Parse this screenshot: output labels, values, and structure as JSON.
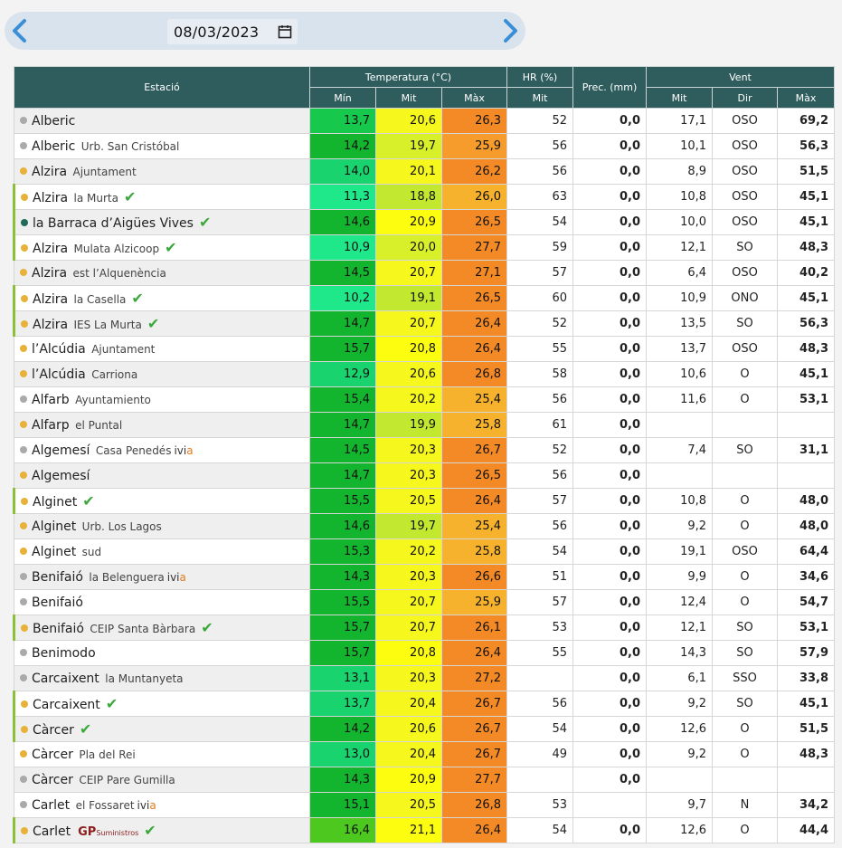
{
  "date": {
    "value": "08/03/2023"
  },
  "icons": {
    "prev": "chevron-left-icon",
    "next": "chevron-right-icon",
    "calendar": "calendar-icon",
    "verified": "check-icon"
  },
  "colors": {
    "header": "#2f5d5d",
    "min_palette": [
      "#1ee88a",
      "#19d46e",
      "#16c94c",
      "#14b52e",
      "#4dc81f"
    ],
    "mit_palette": [
      "#a8e23b",
      "#d8f02a",
      "#f6f71c",
      "#fdfd10"
    ],
    "max_palette": [
      "#f6b22c",
      "#f59c2c",
      "#f48a26"
    ]
  },
  "header": {
    "estacio": "Estació",
    "temperatura": "Temperatura (°C)",
    "hr": "HR (%)",
    "prec": "Prec. (mm)",
    "vent": "Vent",
    "min": "Mín",
    "mit": "Mit",
    "max": "Màx",
    "hr_mit": "Mit",
    "v_mit": "Mit",
    "v_dir": "Dir",
    "v_max": "Màx"
  },
  "rows": [
    {
      "name": "Alberic",
      "sub": "",
      "dot": "#aaaaaa",
      "bar": false,
      "check": false,
      "ivia": false,
      "gp": false,
      "min": "13,7",
      "mit": "20,6",
      "max": "26,3",
      "hr": "52",
      "prec": "0,0",
      "vmit": "17,1",
      "dir": "OSO",
      "vmax": "69,2",
      "cmin": "#16c94c",
      "cmit": "#f6f71c",
      "cmax": "#f48a26"
    },
    {
      "name": "Alberic",
      "sub": "Urb. San Cristóbal",
      "dot": "#aaaaaa",
      "bar": false,
      "check": false,
      "ivia": false,
      "gp": false,
      "min": "14,2",
      "mit": "19,7",
      "max": "25,9",
      "hr": "56",
      "prec": "0,0",
      "vmit": "10,1",
      "dir": "OSO",
      "vmax": "56,3",
      "cmin": "#14b52e",
      "cmit": "#d8f02a",
      "cmax": "#f59c2c"
    },
    {
      "name": "Alzira",
      "sub": "Ajuntament",
      "dot": "#e8b23a",
      "bar": false,
      "check": false,
      "ivia": false,
      "gp": false,
      "min": "14,0",
      "mit": "20,1",
      "max": "26,2",
      "hr": "56",
      "prec": "0,0",
      "vmit": "8,9",
      "dir": "OSO",
      "vmax": "51,5",
      "cmin": "#19d46e",
      "cmit": "#f6f71c",
      "cmax": "#f48a26"
    },
    {
      "name": "Alzira",
      "sub": "la Murta",
      "dot": "#e8b23a",
      "bar": true,
      "check": true,
      "ivia": false,
      "gp": false,
      "min": "11,3",
      "mit": "18,8",
      "max": "26,0",
      "hr": "63",
      "prec": "0,0",
      "vmit": "10,8",
      "dir": "OSO",
      "vmax": "45,1",
      "cmin": "#1ee88a",
      "cmit": "#c2e92f",
      "cmax": "#f6b22c"
    },
    {
      "name": "la Barraca d’Aigües Vives",
      "sub": "",
      "dot": "#1f6a5a",
      "bar": true,
      "check": true,
      "ivia": false,
      "gp": false,
      "min": "14,6",
      "mit": "20,9",
      "max": "26,5",
      "hr": "54",
      "prec": "0,0",
      "vmit": "10,0",
      "dir": "OSO",
      "vmax": "45,1",
      "cmin": "#14b52e",
      "cmit": "#fdfd10",
      "cmax": "#f48a26"
    },
    {
      "name": "Alzira",
      "sub": "Mulata Alzicoop",
      "dot": "#e8b23a",
      "bar": true,
      "check": true,
      "ivia": false,
      "gp": false,
      "min": "10,9",
      "mit": "20,0",
      "max": "27,7",
      "hr": "59",
      "prec": "0,0",
      "vmit": "12,1",
      "dir": "SO",
      "vmax": "48,3",
      "cmin": "#1ee88a",
      "cmit": "#d8f02a",
      "cmax": "#f48a26"
    },
    {
      "name": "Alzira",
      "sub": "est l’Alquenència",
      "dot": "#e8b23a",
      "bar": false,
      "check": false,
      "ivia": false,
      "gp": false,
      "min": "14,5",
      "mit": "20,7",
      "max": "27,1",
      "hr": "57",
      "prec": "0,0",
      "vmit": "6,4",
      "dir": "OSO",
      "vmax": "40,2",
      "cmin": "#14b52e",
      "cmit": "#f6f71c",
      "cmax": "#f48a26"
    },
    {
      "name": "Alzira",
      "sub": "la Casella",
      "dot": "#e8b23a",
      "bar": true,
      "check": true,
      "ivia": false,
      "gp": false,
      "min": "10,2",
      "mit": "19,1",
      "max": "26,5",
      "hr": "60",
      "prec": "0,0",
      "vmit": "10,9",
      "dir": "ONO",
      "vmax": "45,1",
      "cmin": "#1ee88a",
      "cmit": "#c2e92f",
      "cmax": "#f48a26"
    },
    {
      "name": "Alzira",
      "sub": "IES La Murta",
      "dot": "#e8b23a",
      "bar": true,
      "check": true,
      "ivia": false,
      "gp": false,
      "min": "14,7",
      "mit": "20,7",
      "max": "26,4",
      "hr": "52",
      "prec": "0,0",
      "vmit": "13,5",
      "dir": "SO",
      "vmax": "56,3",
      "cmin": "#14b52e",
      "cmit": "#f6f71c",
      "cmax": "#f48a26"
    },
    {
      "name": "l’Alcúdia",
      "sub": "Ajuntament",
      "dot": "#e8b23a",
      "bar": false,
      "check": false,
      "ivia": false,
      "gp": false,
      "min": "15,7",
      "mit": "20,8",
      "max": "26,4",
      "hr": "55",
      "prec": "0,0",
      "vmit": "13,7",
      "dir": "OSO",
      "vmax": "48,3",
      "cmin": "#14b52e",
      "cmit": "#fdfd10",
      "cmax": "#f48a26"
    },
    {
      "name": "l’Alcúdia",
      "sub": "Carriona",
      "dot": "#e8b23a",
      "bar": false,
      "check": false,
      "ivia": false,
      "gp": false,
      "min": "12,9",
      "mit": "20,6",
      "max": "26,8",
      "hr": "58",
      "prec": "0,0",
      "vmit": "10,6",
      "dir": "O",
      "vmax": "45,1",
      "cmin": "#19d46e",
      "cmit": "#f6f71c",
      "cmax": "#f48a26"
    },
    {
      "name": "Alfarb",
      "sub": "Ayuntamiento",
      "dot": "#aaaaaa",
      "bar": false,
      "check": false,
      "ivia": false,
      "gp": false,
      "min": "15,4",
      "mit": "20,2",
      "max": "25,4",
      "hr": "56",
      "prec": "0,0",
      "vmit": "11,6",
      "dir": "O",
      "vmax": "53,1",
      "cmin": "#14b52e",
      "cmit": "#f6f71c",
      "cmax": "#f6b22c"
    },
    {
      "name": "Alfarp",
      "sub": "el Puntal",
      "dot": "#e8b23a",
      "bar": false,
      "check": false,
      "ivia": false,
      "gp": false,
      "min": "14,7",
      "mit": "19,9",
      "max": "25,8",
      "hr": "61",
      "prec": "0,0",
      "vmit": "",
      "dir": "",
      "vmax": "",
      "cmin": "#14b52e",
      "cmit": "#c2e92f",
      "cmax": "#f6b22c"
    },
    {
      "name": "Algemesí",
      "sub": "Casa Penedés",
      "dot": "#aaaaaa",
      "bar": false,
      "check": false,
      "ivia": true,
      "gp": false,
      "min": "14,5",
      "mit": "20,3",
      "max": "26,7",
      "hr": "52",
      "prec": "0,0",
      "vmit": "7,4",
      "dir": "SO",
      "vmax": "31,1",
      "cmin": "#14b52e",
      "cmit": "#f6f71c",
      "cmax": "#f48a26"
    },
    {
      "name": "Algemesí",
      "sub": "",
      "dot": "#e8b23a",
      "bar": false,
      "check": false,
      "ivia": false,
      "gp": false,
      "min": "14,7",
      "mit": "20,3",
      "max": "26,5",
      "hr": "56",
      "prec": "0,0",
      "vmit": "",
      "dir": "",
      "vmax": "",
      "cmin": "#14b52e",
      "cmit": "#f6f71c",
      "cmax": "#f48a26"
    },
    {
      "name": "Alginet",
      "sub": "",
      "dot": "#e8b23a",
      "bar": true,
      "check": true,
      "ivia": false,
      "gp": false,
      "min": "15,5",
      "mit": "20,5",
      "max": "26,4",
      "hr": "57",
      "prec": "0,0",
      "vmit": "10,8",
      "dir": "O",
      "vmax": "48,0",
      "cmin": "#14b52e",
      "cmit": "#f6f71c",
      "cmax": "#f48a26"
    },
    {
      "name": "Alginet",
      "sub": "Urb. Los Lagos",
      "dot": "#e8b23a",
      "bar": false,
      "check": false,
      "ivia": false,
      "gp": false,
      "min": "14,6",
      "mit": "19,7",
      "max": "25,4",
      "hr": "56",
      "prec": "0,0",
      "vmit": "9,2",
      "dir": "O",
      "vmax": "48,0",
      "cmin": "#14b52e",
      "cmit": "#c2e92f",
      "cmax": "#f6b22c"
    },
    {
      "name": "Alginet",
      "sub": "sud",
      "dot": "#e8b23a",
      "bar": false,
      "check": false,
      "ivia": false,
      "gp": false,
      "min": "15,3",
      "mit": "20,2",
      "max": "25,8",
      "hr": "54",
      "prec": "0,0",
      "vmit": "19,1",
      "dir": "OSO",
      "vmax": "64,4",
      "cmin": "#14b52e",
      "cmit": "#f6f71c",
      "cmax": "#f6b22c"
    },
    {
      "name": "Benifaió",
      "sub": "la Belenguera",
      "dot": "#aaaaaa",
      "bar": false,
      "check": false,
      "ivia": true,
      "gp": false,
      "min": "14,3",
      "mit": "20,3",
      "max": "26,6",
      "hr": "51",
      "prec": "0,0",
      "vmit": "9,9",
      "dir": "O",
      "vmax": "34,6",
      "cmin": "#14b52e",
      "cmit": "#f6f71c",
      "cmax": "#f48a26"
    },
    {
      "name": "Benifaió",
      "sub": "",
      "dot": "#aaaaaa",
      "bar": false,
      "check": false,
      "ivia": false,
      "gp": false,
      "min": "15,5",
      "mit": "20,7",
      "max": "25,9",
      "hr": "57",
      "prec": "0,0",
      "vmit": "12,4",
      "dir": "O",
      "vmax": "54,7",
      "cmin": "#14b52e",
      "cmit": "#f6f71c",
      "cmax": "#f6b22c"
    },
    {
      "name": "Benifaió",
      "sub": "CEIP Santa Bàrbara",
      "dot": "#e8b23a",
      "bar": true,
      "check": true,
      "ivia": false,
      "gp": false,
      "min": "15,7",
      "mit": "20,7",
      "max": "26,1",
      "hr": "53",
      "prec": "0,0",
      "vmit": "12,1",
      "dir": "SO",
      "vmax": "53,1",
      "cmin": "#14b52e",
      "cmit": "#f6f71c",
      "cmax": "#f48a26"
    },
    {
      "name": "Benimodo",
      "sub": "",
      "dot": "#aaaaaa",
      "bar": false,
      "check": false,
      "ivia": false,
      "gp": false,
      "min": "15,7",
      "mit": "20,8",
      "max": "26,4",
      "hr": "55",
      "prec": "0,0",
      "vmit": "14,3",
      "dir": "SO",
      "vmax": "57,9",
      "cmin": "#14b52e",
      "cmit": "#fdfd10",
      "cmax": "#f48a26"
    },
    {
      "name": "Carcaixent",
      "sub": "la Muntanyeta",
      "dot": "#aaaaaa",
      "bar": false,
      "check": false,
      "ivia": false,
      "gp": false,
      "min": "13,1",
      "mit": "20,3",
      "max": "27,2",
      "hr": "",
      "prec": "0,0",
      "vmit": "6,1",
      "dir": "SSO",
      "vmax": "33,8",
      "cmin": "#19d46e",
      "cmit": "#f6f71c",
      "cmax": "#f48a26"
    },
    {
      "name": "Carcaixent",
      "sub": "",
      "dot": "#e8b23a",
      "bar": true,
      "check": true,
      "ivia": false,
      "gp": false,
      "min": "13,7",
      "mit": "20,4",
      "max": "26,7",
      "hr": "56",
      "prec": "0,0",
      "vmit": "9,2",
      "dir": "SO",
      "vmax": "45,1",
      "cmin": "#19d46e",
      "cmit": "#f6f71c",
      "cmax": "#f48a26"
    },
    {
      "name": "Càrcer",
      "sub": "",
      "dot": "#e8b23a",
      "bar": true,
      "check": true,
      "ivia": false,
      "gp": false,
      "min": "14,2",
      "mit": "20,6",
      "max": "26,7",
      "hr": "54",
      "prec": "0,0",
      "vmit": "12,6",
      "dir": "O",
      "vmax": "51,5",
      "cmin": "#14b52e",
      "cmit": "#f6f71c",
      "cmax": "#f48a26"
    },
    {
      "name": "Càrcer",
      "sub": "Pla del Rei",
      "dot": "#e8b23a",
      "bar": false,
      "check": false,
      "ivia": false,
      "gp": false,
      "min": "13,0",
      "mit": "20,4",
      "max": "26,7",
      "hr": "49",
      "prec": "0,0",
      "vmit": "9,2",
      "dir": "O",
      "vmax": "48,3",
      "cmin": "#19d46e",
      "cmit": "#f6f71c",
      "cmax": "#f48a26"
    },
    {
      "name": "Càrcer",
      "sub": "CEIP Pare Gumilla",
      "dot": "#aaaaaa",
      "bar": false,
      "check": false,
      "ivia": false,
      "gp": false,
      "min": "14,3",
      "mit": "20,9",
      "max": "27,7",
      "hr": "",
      "prec": "0,0",
      "vmit": "",
      "dir": "",
      "vmax": "",
      "cmin": "#14b52e",
      "cmit": "#fdfd10",
      "cmax": "#f48a26"
    },
    {
      "name": "Carlet",
      "sub": "el Fossaret",
      "dot": "#aaaaaa",
      "bar": false,
      "check": false,
      "ivia": true,
      "gp": false,
      "min": "15,1",
      "mit": "20,5",
      "max": "26,8",
      "hr": "53",
      "prec": "",
      "vmit": "9,7",
      "dir": "N",
      "vmax": "34,2",
      "cmin": "#14b52e",
      "cmit": "#f6f71c",
      "cmax": "#f48a26"
    },
    {
      "name": "Carlet",
      "sub": "",
      "dot": "#e8b23a",
      "bar": true,
      "check": true,
      "ivia": false,
      "gp": true,
      "min": "16,4",
      "mit": "21,1",
      "max": "26,4",
      "hr": "54",
      "prec": "0,0",
      "vmit": "12,6",
      "dir": "O",
      "vmax": "44,4",
      "cmin": "#4dc81f",
      "cmit": "#fdfd10",
      "cmax": "#f48a26"
    }
  ],
  "labels": {
    "ivia_a": "ivi",
    "ivia_b": "a",
    "gp": "GP",
    "gp_sub": "Suministros",
    "check": "✔"
  }
}
